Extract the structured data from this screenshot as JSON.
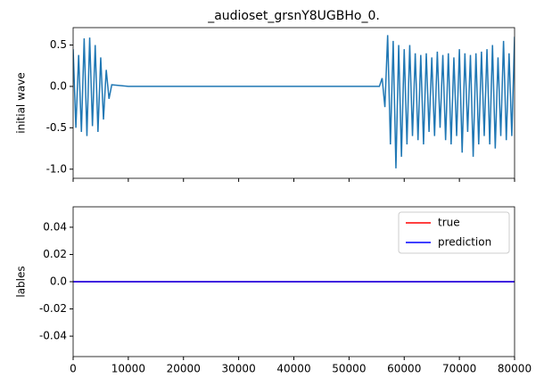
{
  "chart_data": [
    {
      "type": "line",
      "title": "_audioset_grsnY8UGBHo_0.",
      "ylabel": "initial wave",
      "x": [
        0,
        500,
        1000,
        1500,
        2000,
        2500,
        3000,
        3500,
        4000,
        4500,
        5000,
        5500,
        6000,
        6500,
        7000,
        10000,
        15000,
        20000,
        25000,
        30000,
        35000,
        40000,
        45000,
        50000,
        55000,
        55500,
        56000,
        56500,
        57000,
        57500,
        58000,
        58500,
        59000,
        59500,
        60000,
        60500,
        61000,
        61500,
        62000,
        62500,
        63000,
        63500,
        64000,
        64500,
        65000,
        65500,
        66000,
        66500,
        67000,
        67500,
        68000,
        68500,
        69000,
        69500,
        70000,
        70500,
        71000,
        71500,
        72000,
        72500,
        73000,
        73500,
        74000,
        74500,
        75000,
        75500,
        76000,
        76500,
        77000,
        77500,
        78000,
        78500,
        79000,
        79500,
        80000
      ],
      "values": [
        0.45,
        -0.5,
        0.38,
        -0.55,
        0.58,
        -0.6,
        0.59,
        -0.48,
        0.5,
        -0.55,
        0.35,
        -0.4,
        0.2,
        -0.15,
        0.02,
        0,
        0,
        0,
        0,
        0,
        0,
        0,
        0,
        0,
        0,
        0,
        0.1,
        -0.25,
        0.62,
        -0.7,
        0.55,
        -0.99,
        0.5,
        -0.85,
        0.45,
        -0.7,
        0.5,
        -0.6,
        0.4,
        -0.65,
        0.38,
        -0.7,
        0.4,
        -0.55,
        0.35,
        -0.6,
        0.42,
        -0.5,
        0.38,
        -0.65,
        0.4,
        -0.7,
        0.35,
        -0.6,
        0.45,
        -0.8,
        0.4,
        -0.55,
        0.38,
        -0.85,
        0.4,
        -0.7,
        0.42,
        -0.6,
        0.45,
        -0.7,
        0.5,
        -0.75,
        0.35,
        -0.6,
        0.55,
        -0.65,
        0.4,
        -0.6,
        0.6
      ],
      "color": "#1f77b4",
      "xlim": [
        0,
        80000
      ],
      "xticks": [
        0,
        10000,
        20000,
        30000,
        40000,
        50000,
        60000,
        70000,
        80000
      ],
      "show_xtick_labels": false,
      "ylim": [
        -1.11,
        0.71
      ],
      "yticks": [
        0.5,
        0.0,
        -0.5,
        -1.0
      ]
    },
    {
      "type": "line",
      "ylabel": "lables",
      "x": [
        0,
        80000
      ],
      "series": [
        {
          "name": "true",
          "color": "#ff0000",
          "values": [
            0,
            0
          ]
        },
        {
          "name": "prediction",
          "color": "#0000ff",
          "values": [
            0,
            0
          ]
        }
      ],
      "legend": "upper right",
      "xlim": [
        0,
        80000
      ],
      "xticks": [
        0,
        10000,
        20000,
        30000,
        40000,
        50000,
        60000,
        70000,
        80000
      ],
      "show_xtick_labels": true,
      "ylim": [
        -0.055,
        0.055
      ],
      "yticks": [
        0.04,
        0.02,
        0.0,
        -0.02,
        -0.04
      ]
    }
  ]
}
